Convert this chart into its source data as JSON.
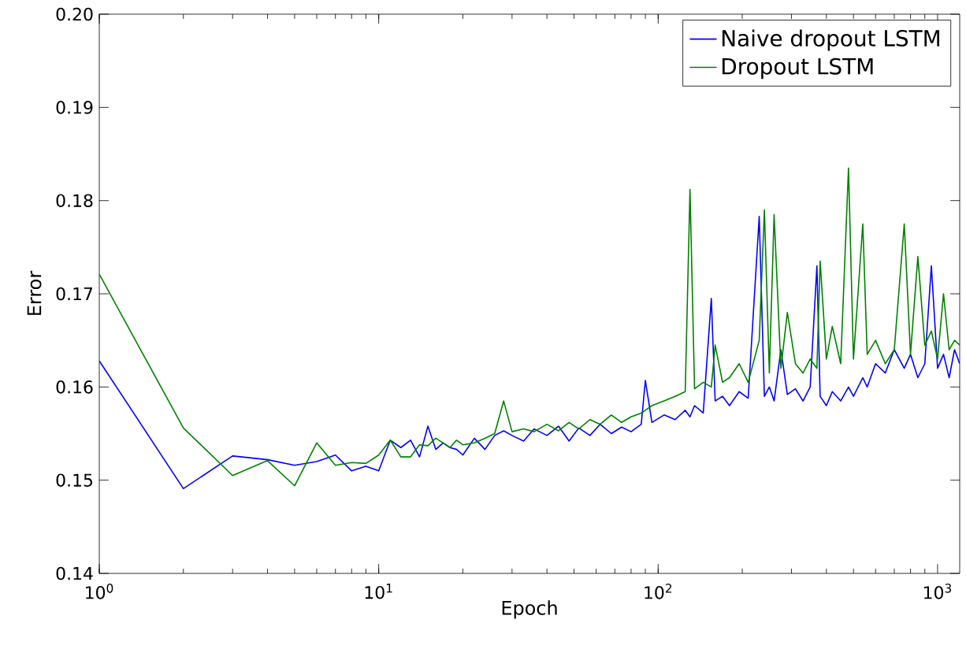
{
  "chart_data": {
    "type": "line",
    "xlabel": "Epoch",
    "ylabel": "Error",
    "log": "x",
    "legend": "top right",
    "marker": "none",
    "line_style": "solid",
    "xlim": [
      1,
      1200
    ],
    "ylim": [
      0.14,
      0.2
    ],
    "xticks": [
      {
        "value": 1,
        "label": "10$^{0}$"
      },
      {
        "value": 10,
        "label": "10$^{1}$"
      },
      {
        "value": 100,
        "label": "10$^{2}$"
      },
      {
        "value": 1000,
        "label": "10$^{3}$"
      }
    ],
    "yticks": [
      0.14,
      0.15,
      0.16,
      0.17,
      0.18,
      0.19,
      {
        "value": 0.2,
        "label": "0.20"
      }
    ],
    "x": [
      1,
      2,
      3,
      4,
      5,
      6,
      7,
      8,
      9,
      10,
      11,
      12,
      13,
      14,
      15,
      16,
      17,
      18,
      19,
      20,
      22,
      24,
      26,
      28,
      30,
      33,
      36,
      40,
      44,
      48,
      52,
      57,
      62,
      68,
      74,
      80,
      87,
      90,
      95,
      105,
      115,
      125,
      130,
      135,
      145,
      155,
      160,
      170,
      180,
      195,
      210,
      230,
      240,
      250,
      260,
      275,
      290,
      310,
      330,
      350,
      370,
      380,
      400,
      420,
      450,
      480,
      500,
      540,
      560,
      600,
      650,
      700,
      760,
      800,
      850,
      900,
      950,
      1000,
      1050,
      1100,
      1150,
      1200
    ],
    "series": [
      {
        "name": "Naive dropout LSTM",
        "color": "#0000ff",
        "values": [
          0.1628,
          0.1491,
          0.1526,
          0.1522,
          0.1516,
          0.152,
          0.1527,
          0.151,
          0.1515,
          0.151,
          0.1543,
          0.1535,
          0.1543,
          0.1525,
          0.1558,
          0.1533,
          0.154,
          0.1535,
          0.1533,
          0.1527,
          0.1545,
          0.1533,
          0.1548,
          0.1553,
          0.1548,
          0.1542,
          0.1555,
          0.1548,
          0.1558,
          0.1542,
          0.1556,
          0.1548,
          0.156,
          0.155,
          0.1557,
          0.1552,
          0.156,
          0.1607,
          0.1562,
          0.157,
          0.1565,
          0.1575,
          0.1568,
          0.158,
          0.1572,
          0.1695,
          0.1585,
          0.159,
          0.158,
          0.1595,
          0.1588,
          0.1783,
          0.159,
          0.16,
          0.1585,
          0.164,
          0.1592,
          0.1598,
          0.1585,
          0.16,
          0.173,
          0.159,
          0.158,
          0.1595,
          0.1585,
          0.16,
          0.159,
          0.161,
          0.16,
          0.1625,
          0.1615,
          0.164,
          0.162,
          0.1635,
          0.161,
          0.1625,
          0.173,
          0.162,
          0.1635,
          0.161,
          0.164,
          0.1625
        ]
      },
      {
        "name": "Dropout LSTM",
        "color": "#008000",
        "values": [
          0.1721,
          0.1556,
          0.1505,
          0.1521,
          0.1494,
          0.154,
          0.1516,
          0.1519,
          0.1518,
          0.1527,
          0.1543,
          0.1525,
          0.1525,
          0.1538,
          0.1537,
          0.1545,
          0.154,
          0.1535,
          0.1543,
          0.1538,
          0.154,
          0.1545,
          0.155,
          0.1585,
          0.1552,
          0.1555,
          0.1552,
          0.156,
          0.1553,
          0.1562,
          0.1555,
          0.1565,
          0.156,
          0.157,
          0.1562,
          0.1568,
          0.1572,
          0.1575,
          0.158,
          0.1585,
          0.159,
          0.1595,
          0.1812,
          0.1598,
          0.1605,
          0.16,
          0.1645,
          0.1605,
          0.161,
          0.1625,
          0.1605,
          0.165,
          0.179,
          0.1615,
          0.1785,
          0.162,
          0.168,
          0.1625,
          0.1615,
          0.163,
          0.162,
          0.1735,
          0.163,
          0.1665,
          0.1625,
          0.1835,
          0.163,
          0.1775,
          0.1635,
          0.165,
          0.1625,
          0.164,
          0.1775,
          0.1635,
          0.174,
          0.1645,
          0.166,
          0.163,
          0.17,
          0.164,
          0.165,
          0.1645
        ]
      }
    ]
  }
}
